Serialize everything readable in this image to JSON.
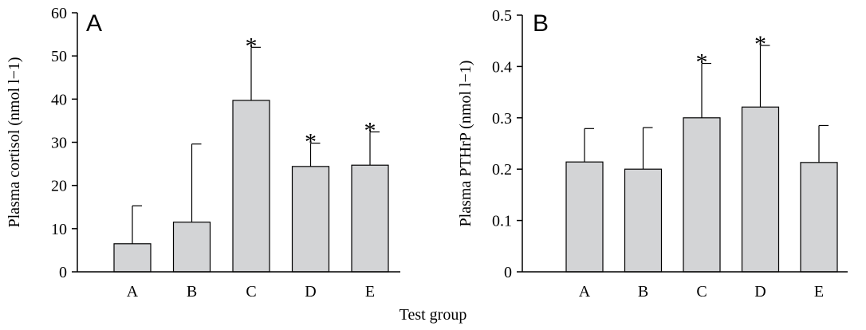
{
  "xlabel": "Test group",
  "chart_data": [
    {
      "type": "bar",
      "panel_label": "A",
      "ylabel": "Plasma cortisol (nmol l−1)",
      "categories": [
        "A",
        "B",
        "C",
        "D",
        "E"
      ],
      "values": [
        6.5,
        11.5,
        39.7,
        24.4,
        24.7
      ],
      "error_upper": [
        15.3,
        29.6,
        52.0,
        29.8,
        32.4
      ],
      "significant": [
        false,
        false,
        true,
        true,
        true
      ],
      "ylim": [
        0,
        60
      ],
      "yticks": [
        0,
        10,
        20,
        30,
        40,
        50,
        60
      ],
      "ytick_labels": [
        "0",
        "10",
        "20",
        "30",
        "40",
        "50",
        "60"
      ],
      "bar_color": "#d3d4d6",
      "star_text": "*"
    },
    {
      "type": "bar",
      "panel_label": "B",
      "ylabel": "Plasma PTHrP (nmol l−1)",
      "categories": [
        "A",
        "B",
        "C",
        "D",
        "E"
      ],
      "values": [
        0.214,
        0.2,
        0.3,
        0.321,
        0.213
      ],
      "error_upper": [
        0.279,
        0.281,
        0.406,
        0.441,
        0.285
      ],
      "significant": [
        false,
        false,
        true,
        true,
        false
      ],
      "ylim": [
        0,
        0.5
      ],
      "yticks": [
        0,
        0.1,
        0.2,
        0.3,
        0.4,
        0.5
      ],
      "ytick_labels": [
        "0",
        "0.1",
        "0.2",
        "0.3",
        "0.4",
        "0.5"
      ],
      "bar_color": "#d3d4d6",
      "star_text": "*"
    }
  ]
}
